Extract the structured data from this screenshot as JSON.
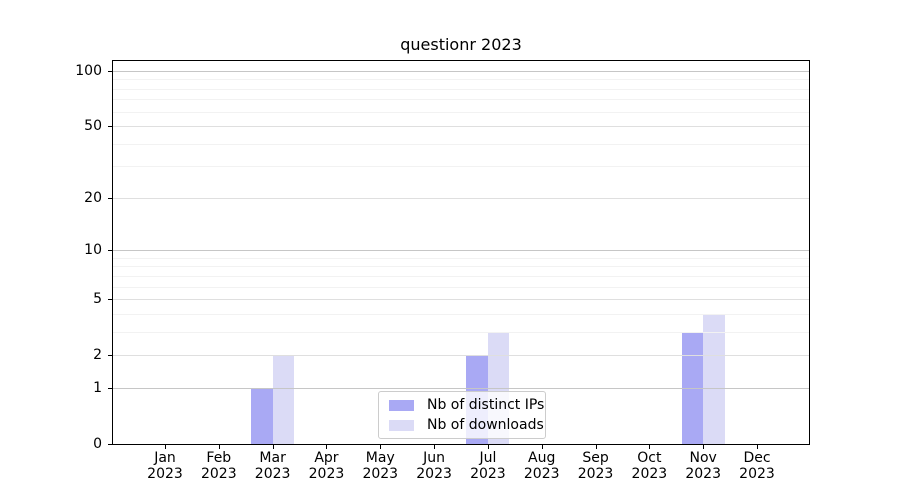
{
  "chart_data": {
    "type": "bar",
    "title": "questionr 2023",
    "categories": [
      "Jan",
      "Feb",
      "Mar",
      "Apr",
      "May",
      "Jun",
      "Jul",
      "Aug",
      "Sep",
      "Oct",
      "Nov",
      "Dec"
    ],
    "year_label": "2023",
    "series": [
      {
        "name": "Nb of distinct IPs",
        "color": "#a9a9f4",
        "values": [
          0,
          0,
          1,
          0,
          0,
          0,
          2,
          0,
          0,
          0,
          3,
          0
        ]
      },
      {
        "name": "Nb of downloads",
        "color": "#dbdbf6",
        "values": [
          0,
          0,
          2,
          0,
          0,
          0,
          3,
          0,
          0,
          0,
          4,
          0
        ]
      }
    ],
    "xlabel": "",
    "ylabel": "",
    "yscale": "log1p",
    "ylim": [
      0,
      113
    ],
    "yticks": [
      0,
      1,
      2,
      5,
      10,
      20,
      50,
      100
    ],
    "decade_ticks": [
      1,
      10,
      100
    ],
    "minor_gridlines": [
      3,
      4,
      6,
      7,
      8,
      9,
      30,
      40,
      60,
      70,
      80,
      90
    ],
    "grid": "on",
    "legend_position": "lower center"
  }
}
